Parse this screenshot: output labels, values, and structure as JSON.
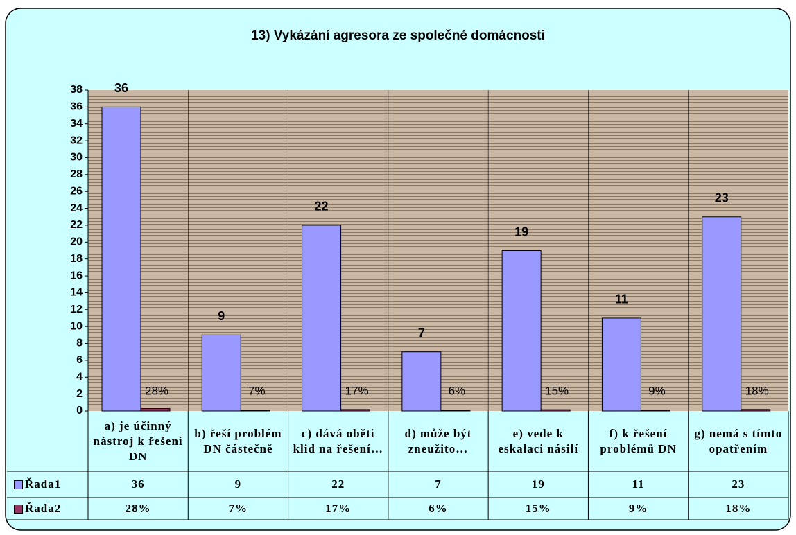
{
  "chart_data": {
    "type": "bar",
    "title": "13) Vykázání agresora ze společné domácnosti",
    "categories": [
      "a) je účinný nástroj k řešení DN",
      "b) řeší problém DN částečně",
      "c) dává oběti klid na řešení…",
      "d) může být zneužito…",
      "e) vede k eskalaci násilí",
      "f) k řešení problémů DN",
      "g) nemá s tímto opatřením"
    ],
    "series": [
      {
        "name": "Řada1",
        "color": "#9999ff",
        "values": [
          36,
          9,
          22,
          7,
          19,
          11,
          23
        ]
      },
      {
        "name": "Řada2",
        "color": "#993366",
        "values": [
          0.28,
          0.07,
          0.17,
          0.06,
          0.15,
          0.09,
          0.18
        ],
        "value_labels": [
          "28%",
          "7%",
          "17%",
          "6%",
          "15%",
          "9%",
          "18%"
        ]
      }
    ],
    "ylim": [
      0,
      38
    ],
    "yticks": [
      0,
      2,
      4,
      6,
      8,
      10,
      12,
      14,
      16,
      18,
      20,
      22,
      24,
      26,
      28,
      30,
      32,
      34,
      36,
      38
    ],
    "data_table": true
  }
}
